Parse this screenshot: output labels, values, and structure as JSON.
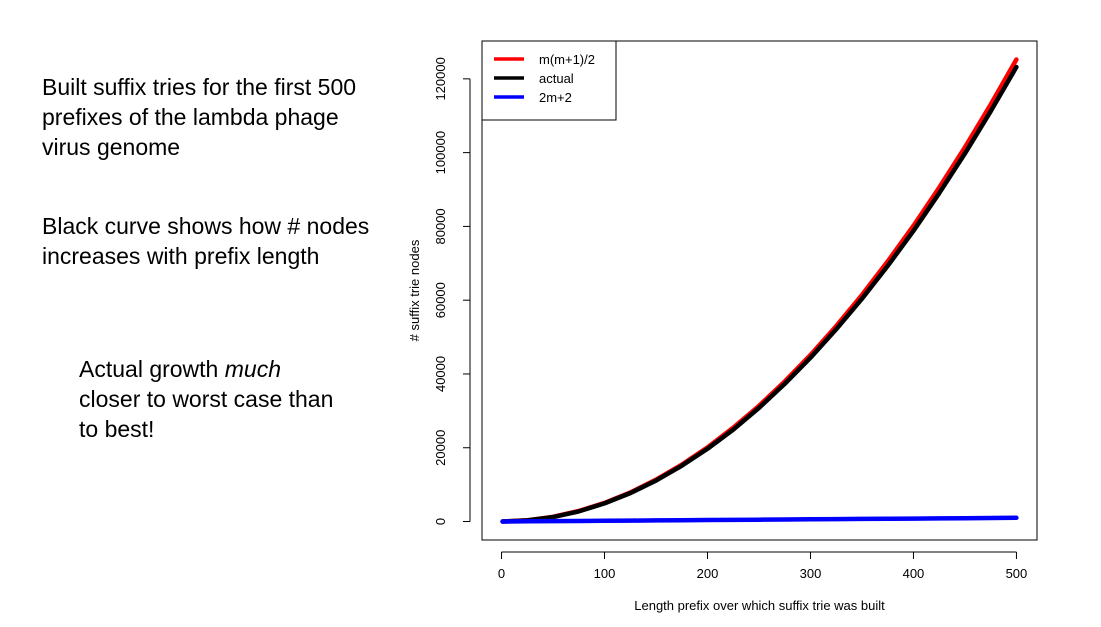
{
  "notes": {
    "para1": "Built suffix tries for the first 500 prefixes of the lambda phage virus genome",
    "para2": "Black curve shows how # nodes increases with prefix length",
    "para3_before": "Actual growth ",
    "para3_emph": "much",
    "para3_after": " closer to worst case than to best!"
  },
  "chart_data": {
    "type": "line",
    "title": "",
    "xlabel": "Length prefix over which suffix trie was built",
    "ylabel": "# suffix trie nodes",
    "xlim": [
      1,
      500
    ],
    "ylim": [
      0,
      125250
    ],
    "xticks": [
      0,
      100,
      200,
      300,
      400,
      500
    ],
    "yticks": [
      0,
      20000,
      40000,
      60000,
      80000,
      100000,
      120000
    ],
    "legend_position": "top-left",
    "grid": false,
    "x": [
      1,
      25,
      50,
      75,
      100,
      125,
      150,
      175,
      200,
      225,
      250,
      275,
      300,
      325,
      350,
      375,
      400,
      425,
      450,
      475,
      500
    ],
    "series": [
      {
        "name": "m(m+1)/2",
        "color": "#ff0000",
        "values": [
          1,
          325,
          1275,
          2850,
          5050,
          7875,
          11325,
          15400,
          20100,
          25425,
          31375,
          37950,
          45150,
          52975,
          61425,
          70500,
          80200,
          90525,
          101475,
          113050,
          125250
        ]
      },
      {
        "name": "actual",
        "color": "#000000",
        "values": [
          1,
          300,
          1200,
          2750,
          4900,
          7700,
          11100,
          15100,
          19700,
          24900,
          30800,
          37300,
          44400,
          52100,
          60400,
          69300,
          78800,
          89000,
          99800,
          111200,
          123200
        ]
      },
      {
        "name": "2m+2",
        "color": "#0000ff",
        "values": [
          4,
          52,
          102,
          152,
          202,
          252,
          302,
          352,
          402,
          452,
          502,
          552,
          602,
          652,
          702,
          752,
          802,
          852,
          902,
          952,
          1002
        ]
      }
    ]
  }
}
